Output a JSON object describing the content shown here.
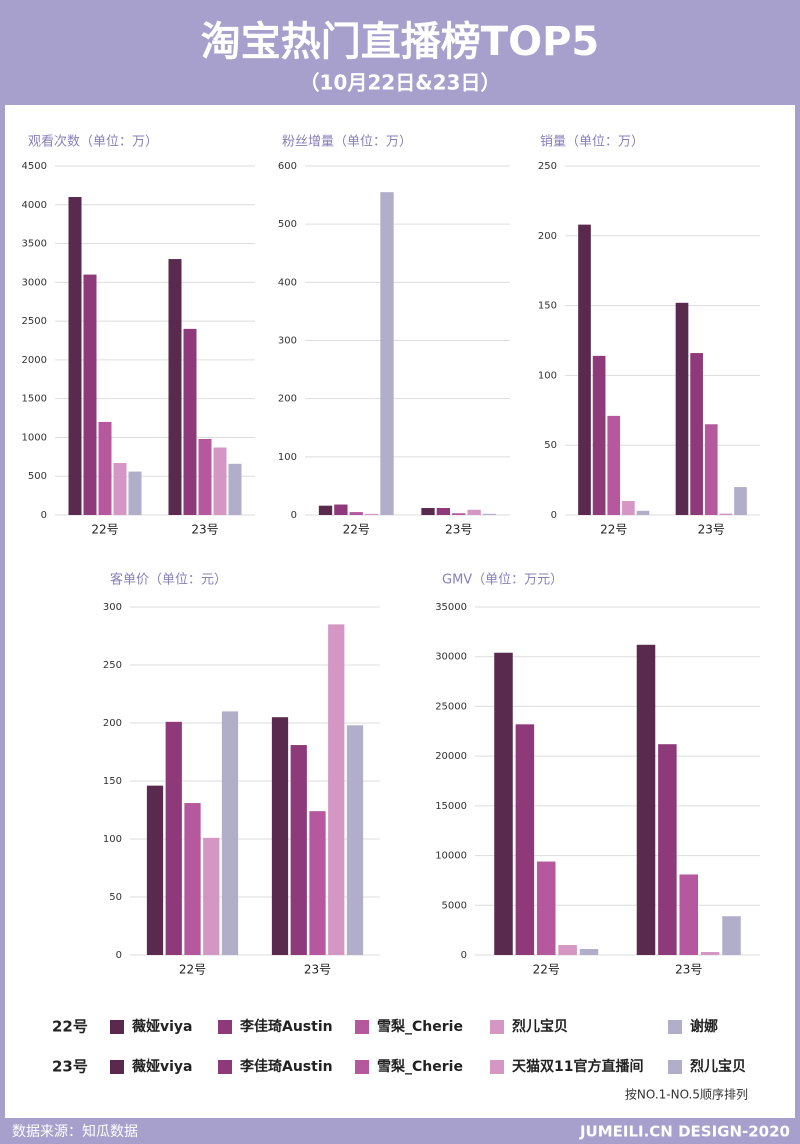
{
  "header": {
    "title": "淘宝热门直播榜TOP5",
    "subtitle": "（10月22日&23日）"
  },
  "chart_data": [
    {
      "type": "bar",
      "title": "观看次数（单位：万）",
      "categories": [
        "22号",
        "23号"
      ],
      "values": [
        [
          4100,
          3100,
          1200,
          670,
          560
        ],
        [
          3300,
          2400,
          980,
          870,
          660
        ]
      ],
      "ylim": [
        0,
        4500
      ],
      "yticks": [
        0,
        500,
        1000,
        1500,
        2000,
        2500,
        3000,
        3500,
        4000,
        4500
      ],
      "grid": true
    },
    {
      "type": "bar",
      "title": "粉丝增量（单位：万）",
      "categories": [
        "22号",
        "23号"
      ],
      "values": [
        [
          16,
          18,
          5,
          2,
          555
        ],
        [
          12,
          12,
          3,
          9,
          2
        ]
      ],
      "ylim": [
        0,
        600
      ],
      "yticks": [
        0,
        100,
        200,
        300,
        400,
        500,
        600
      ],
      "grid": true
    },
    {
      "type": "bar",
      "title": "销量（单位：万）",
      "categories": [
        "22号",
        "23号"
      ],
      "values": [
        [
          208,
          114,
          71,
          10,
          3
        ],
        [
          152,
          116,
          65,
          1,
          20
        ]
      ],
      "ylim": [
        0,
        250
      ],
      "yticks": [
        0,
        50,
        100,
        150,
        200,
        250
      ],
      "grid": true
    },
    {
      "type": "bar",
      "title": "客单价（单位：元）",
      "categories": [
        "22号",
        "23号"
      ],
      "values": [
        [
          146,
          201,
          131,
          101,
          210
        ],
        [
          205,
          181,
          124,
          285,
          198
        ]
      ],
      "ylim": [
        0,
        300
      ],
      "yticks": [
        0,
        50,
        100,
        150,
        200,
        250,
        300
      ],
      "grid": true
    },
    {
      "type": "bar",
      "title": "GMV（单位：万元）",
      "categories": [
        "22号",
        "23号"
      ],
      "values": [
        [
          30400,
          23200,
          9400,
          1000,
          600
        ],
        [
          31200,
          21200,
          8100,
          300,
          3900
        ]
      ],
      "ylim": [
        0,
        35000
      ],
      "yticks": [
        0,
        5000,
        10000,
        15000,
        20000,
        25000,
        30000,
        35000
      ],
      "grid": true
    }
  ],
  "legend": {
    "colors": [
      "#5a2a4e",
      "#8e3a7a",
      "#b5589d",
      "#d496c2",
      "#b0aec8"
    ],
    "rows": [
      {
        "label": "22号",
        "entries": [
          "薇娅viya",
          "李佳琦Austin",
          "雪梨_Cherie",
          "烈儿宝贝",
          "谢娜"
        ]
      },
      {
        "label": "23号",
        "entries": [
          "薇娅viya",
          "李佳琦Austin",
          "雪梨_Cherie",
          "天猫双11官方直播间",
          "烈儿宝贝"
        ]
      }
    ],
    "note": "按NO.1-NO.5顺序排列"
  },
  "footer": {
    "source": "数据来源：知瓜数据",
    "credit": "JUMEILI.CN DESIGN-2020"
  }
}
